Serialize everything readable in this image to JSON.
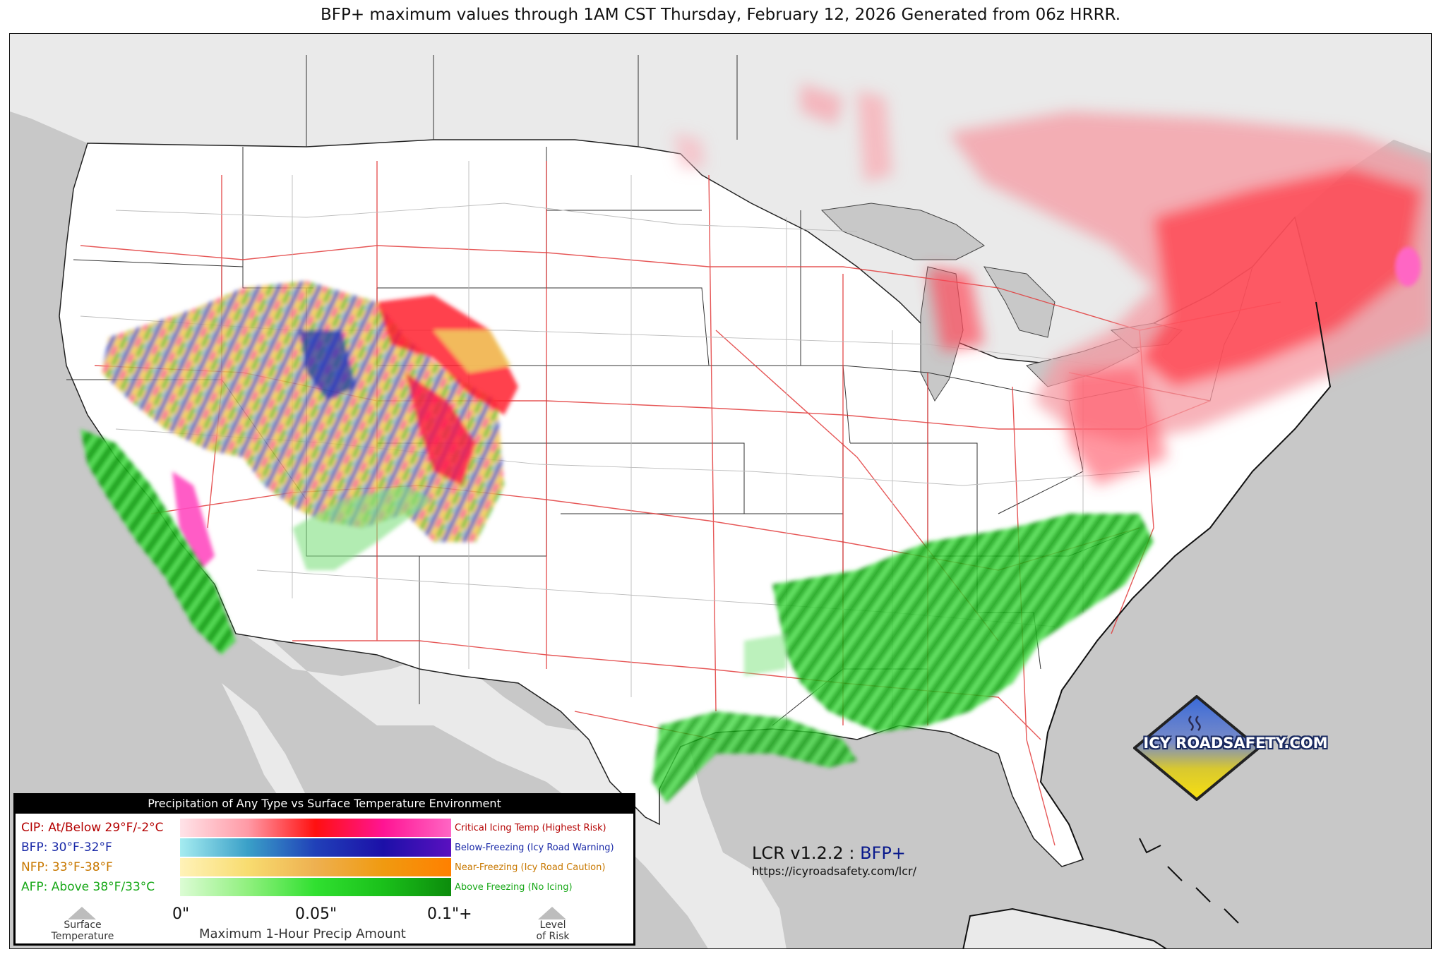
{
  "title": "BFP+ maximum values through 1AM CST Thursday, February 12, 2026 Generated from 06z HRRR.",
  "legend": {
    "header": "Precipitation of Any Type vs Surface Temperature Environment",
    "rows": [
      {
        "label": "CIP: At/Below 29°F/-2°C",
        "desc": "Critical Icing Temp (Highest Risk)",
        "label_color": "#b40000",
        "desc_color": "#b40000",
        "colors": [
          "#ffe3e8",
          "#ff9aa6",
          "#ff1010",
          "#ff1493",
          "#ff66c4"
        ]
      },
      {
        "label": "BFP: 30°F-32°F",
        "desc": "Below-Freezing (Icy Road Warning)",
        "label_color": "#1a2aa8",
        "desc_color": "#1a2aa8",
        "colors": [
          "#a5ecf0",
          "#3aa0c8",
          "#2040b8",
          "#1c10a8",
          "#5a10c0"
        ]
      },
      {
        "label": "NFP: 33°F-38°F",
        "desc": "Near-Freezing (Icy Road Caution)",
        "label_color": "#c87800",
        "desc_color": "#c87800",
        "colors": [
          "#fff2b8",
          "#f8dc70",
          "#eeb050",
          "#f09a10",
          "#ff8000"
        ]
      },
      {
        "label": "AFP: Above 38°F/33°C",
        "desc": "Above Freezing (No Icing)",
        "label_color": "#18a818",
        "desc_color": "#18a818",
        "colors": [
          "#dcfcd4",
          "#90f07e",
          "#30e030",
          "#1ac01a",
          "#0c8c0c"
        ]
      }
    ],
    "ticks": [
      "0\"",
      "0.05\"",
      "0.1\"+"
    ],
    "axis_title": "Maximum 1-Hour Precip Amount",
    "left_caption": [
      "Surface",
      "Temperature"
    ],
    "right_caption": [
      "Level",
      "of Risk"
    ]
  },
  "version": {
    "prefix": "LCR v1.2.2 :",
    "product": "BFP+",
    "url": "https://icyroadsafety.com/lcr/"
  },
  "logo": {
    "text": "ICY ROADSAFETY.COM",
    "icon": "heat-waves-icon"
  }
}
